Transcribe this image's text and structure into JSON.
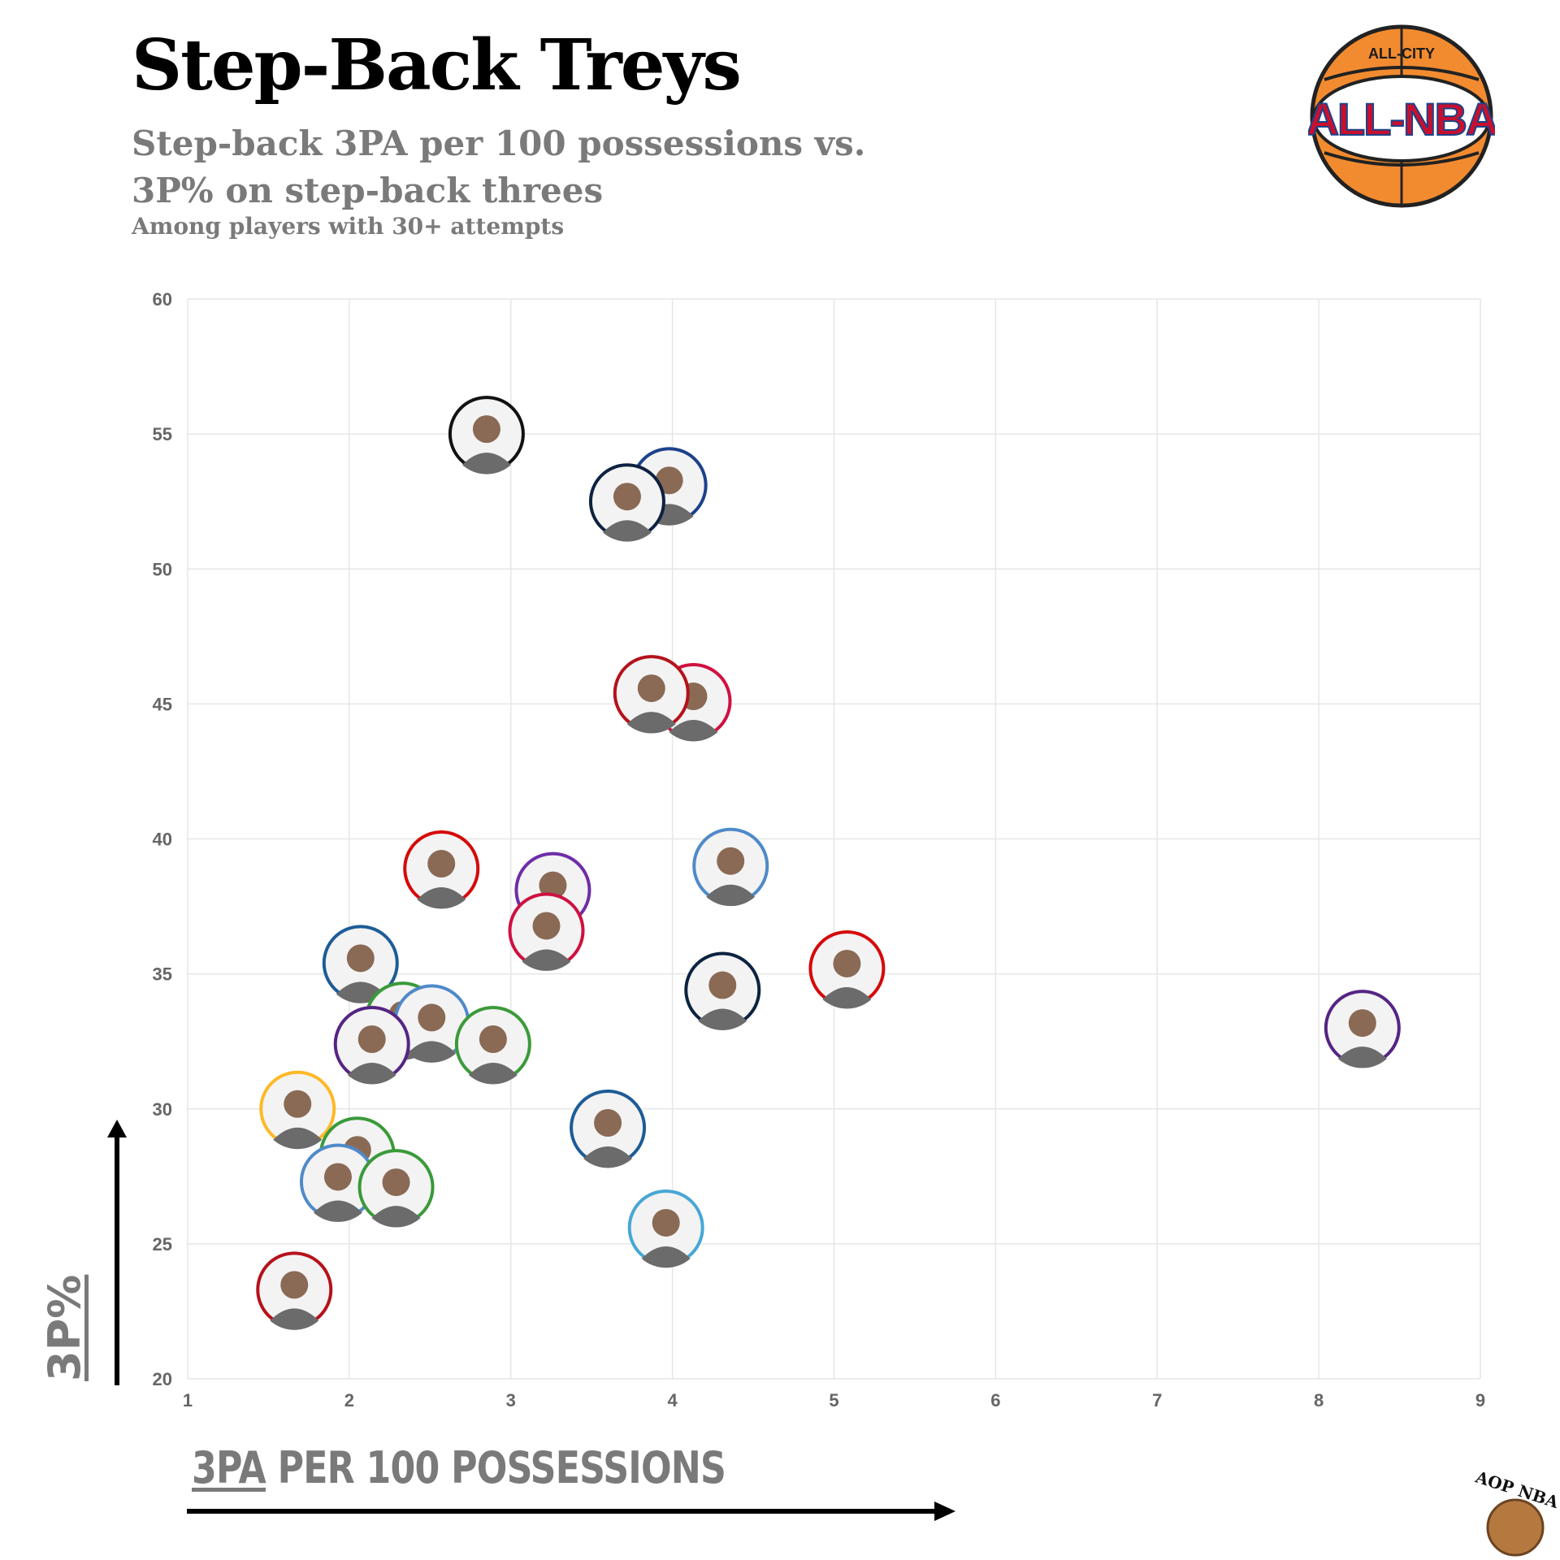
{
  "header": {
    "title": "Step-Back Treys",
    "subtitle": "Step-back 3PA per 100 possessions vs. 3P% on step-back threes",
    "note": "Among players with 30+ attempts"
  },
  "logo": {
    "top_text": "ALL-CITY",
    "main_text": "ALL-NBA"
  },
  "watermark": {
    "text": "AOP NBA"
  },
  "axes": {
    "x_label_underlined": "3PA",
    "x_label_rest": " PER 100 POSSESSIONS",
    "y_label": "3P%"
  },
  "chart_data": {
    "type": "scatter",
    "xlabel": "3PA PER 100 POSSESSIONS",
    "ylabel": "3P%",
    "xlim": [
      1,
      9
    ],
    "ylim": [
      20,
      60
    ],
    "x_ticks": [
      1,
      2,
      3,
      4,
      5,
      6,
      7,
      8,
      9
    ],
    "y_ticks": [
      20,
      25,
      30,
      35,
      40,
      45,
      50,
      55,
      60
    ],
    "grid": true,
    "points": [
      {
        "x": 2.85,
        "y": 55.0,
        "ring": "#111111"
      },
      {
        "x": 3.98,
        "y": 53.1,
        "ring": "#1d428a"
      },
      {
        "x": 3.72,
        "y": 52.5,
        "ring": "#0e2240"
      },
      {
        "x": 4.13,
        "y": 45.1,
        "ring": "#ce1141"
      },
      {
        "x": 3.87,
        "y": 45.4,
        "ring": "#b5121b"
      },
      {
        "x": 2.57,
        "y": 38.9,
        "ring": "#d50a0a"
      },
      {
        "x": 4.36,
        "y": 39.0,
        "ring": "#4f8ac9"
      },
      {
        "x": 3.26,
        "y": 38.1,
        "ring": "#6f2da8"
      },
      {
        "x": 3.22,
        "y": 36.6,
        "ring": "#ce1141"
      },
      {
        "x": 2.07,
        "y": 35.4,
        "ring": "#1d5c96"
      },
      {
        "x": 5.08,
        "y": 35.2,
        "ring": "#d50a0a"
      },
      {
        "x": 4.31,
        "y": 34.4,
        "ring": "#0c2340"
      },
      {
        "x": 8.27,
        "y": 33.0,
        "ring": "#552583"
      },
      {
        "x": 2.33,
        "y": 33.3,
        "ring": "#3a9a3a"
      },
      {
        "x": 2.51,
        "y": 33.2,
        "ring": "#4f8ac9"
      },
      {
        "x": 2.89,
        "y": 32.4,
        "ring": "#3a9a3a"
      },
      {
        "x": 2.14,
        "y": 32.4,
        "ring": "#552583"
      },
      {
        "x": 1.68,
        "y": 30.0,
        "ring": "#fdb927"
      },
      {
        "x": 3.6,
        "y": 29.3,
        "ring": "#1d5c96"
      },
      {
        "x": 2.05,
        "y": 28.3,
        "ring": "#3a9a3a"
      },
      {
        "x": 1.93,
        "y": 27.3,
        "ring": "#4f8ac9"
      },
      {
        "x": 2.29,
        "y": 27.1,
        "ring": "#3a9a3a"
      },
      {
        "x": 3.96,
        "y": 25.6,
        "ring": "#47a7d4"
      },
      {
        "x": 1.66,
        "y": 23.3,
        "ring": "#b5121b"
      }
    ]
  }
}
